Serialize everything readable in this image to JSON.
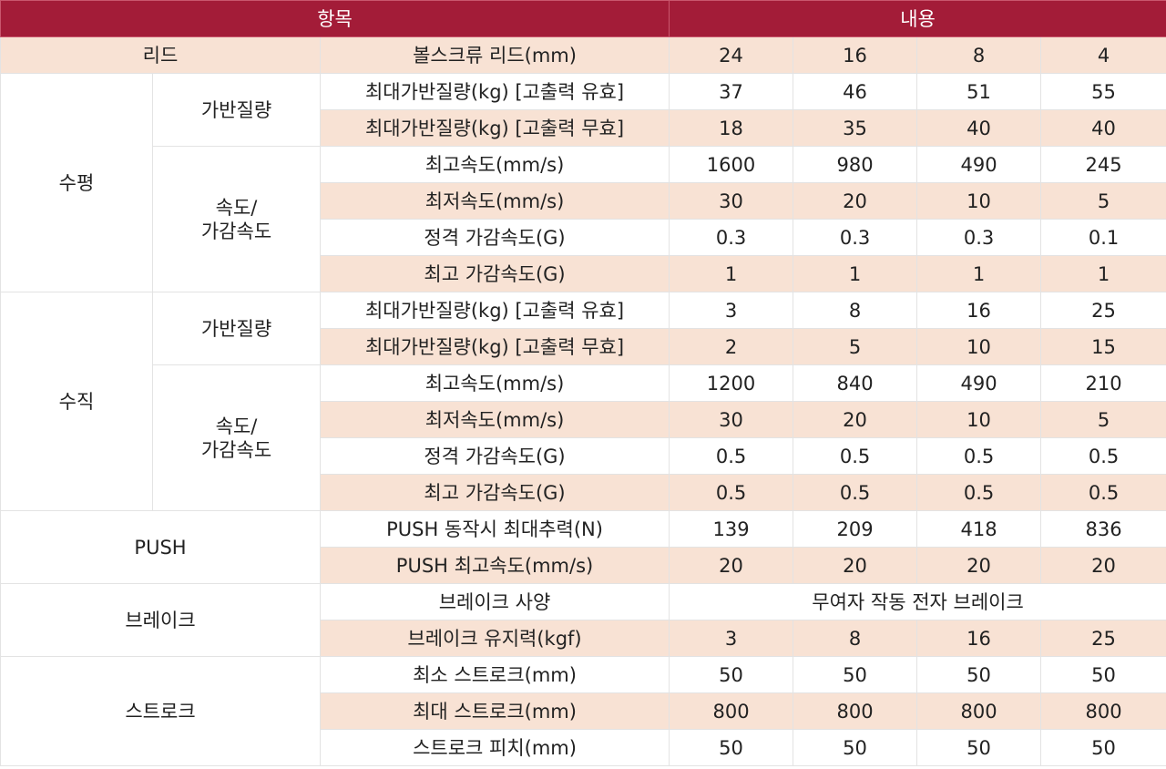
{
  "header": {
    "item": "항목",
    "content": "내용"
  },
  "lead": {
    "group": "리드",
    "label": "볼스크류 리드(mm)",
    "values": [
      "24",
      "16",
      "8",
      "4"
    ]
  },
  "horizontal": {
    "group": "수평",
    "payload": {
      "sub": "가반질량",
      "rows": [
        {
          "label": "최대가반질량(kg) [고출력 유효]",
          "values": [
            "37",
            "46",
            "51",
            "55"
          ]
        },
        {
          "label": "최대가반질량(kg) [고출력 무효]",
          "values": [
            "18",
            "35",
            "40",
            "40"
          ]
        }
      ]
    },
    "speed": {
      "sub_line1": "속도/",
      "sub_line2": "가감속도",
      "rows": [
        {
          "label": "최고속도(mm/s)",
          "values": [
            "1600",
            "980",
            "490",
            "245"
          ]
        },
        {
          "label": "최저속도(mm/s)",
          "values": [
            "30",
            "20",
            "10",
            "5"
          ]
        },
        {
          "label": "정격 가감속도(G)",
          "values": [
            "0.3",
            "0.3",
            "0.3",
            "0.1"
          ]
        },
        {
          "label": "최고 가감속도(G)",
          "values": [
            "1",
            "1",
            "1",
            "1"
          ]
        }
      ]
    }
  },
  "vertical": {
    "group": "수직",
    "payload": {
      "sub": "가반질량",
      "rows": [
        {
          "label": "최대가반질량(kg) [고출력 유효]",
          "values": [
            "3",
            "8",
            "16",
            "25"
          ]
        },
        {
          "label": "최대가반질량(kg) [고출력 무효]",
          "values": [
            "2",
            "5",
            "10",
            "15"
          ]
        }
      ]
    },
    "speed": {
      "sub_line1": "속도/",
      "sub_line2": "가감속도",
      "rows": [
        {
          "label": "최고속도(mm/s)",
          "values": [
            "1200",
            "840",
            "490",
            "210"
          ]
        },
        {
          "label": "최저속도(mm/s)",
          "values": [
            "30",
            "20",
            "10",
            "5"
          ]
        },
        {
          "label": "정격 가감속도(G)",
          "values": [
            "0.5",
            "0.5",
            "0.5",
            "0.5"
          ]
        },
        {
          "label": "최고 가감속도(G)",
          "values": [
            "0.5",
            "0.5",
            "0.5",
            "0.5"
          ]
        }
      ]
    }
  },
  "push": {
    "group": "PUSH",
    "rows": [
      {
        "label": "PUSH 동작시 최대추력(N)",
        "values": [
          "139",
          "209",
          "418",
          "836"
        ]
      },
      {
        "label": "PUSH 최고속도(mm/s)",
        "values": [
          "20",
          "20",
          "20",
          "20"
        ]
      }
    ]
  },
  "brake": {
    "group": "브레이크",
    "spec_label": "브레이크 사양",
    "spec_value": "무여자 작동 전자 브레이크",
    "hold_label": "브레이크 유지력(kgf)",
    "hold_values": [
      "3",
      "8",
      "16",
      "25"
    ]
  },
  "stroke": {
    "group": "스트로크",
    "rows": [
      {
        "label": "최소 스트로크(mm)",
        "values": [
          "50",
          "50",
          "50",
          "50"
        ]
      },
      {
        "label": "최대 스트로크(mm)",
        "values": [
          "800",
          "800",
          "800",
          "800"
        ]
      },
      {
        "label": "스트로크 피치(mm)",
        "values": [
          "50",
          "50",
          "50",
          "50"
        ]
      }
    ]
  },
  "colors": {
    "header_bg": "#a31c38",
    "header_text": "#ffffff",
    "row_alt": "#f8e2d4",
    "row_plain": "#ffffff"
  }
}
